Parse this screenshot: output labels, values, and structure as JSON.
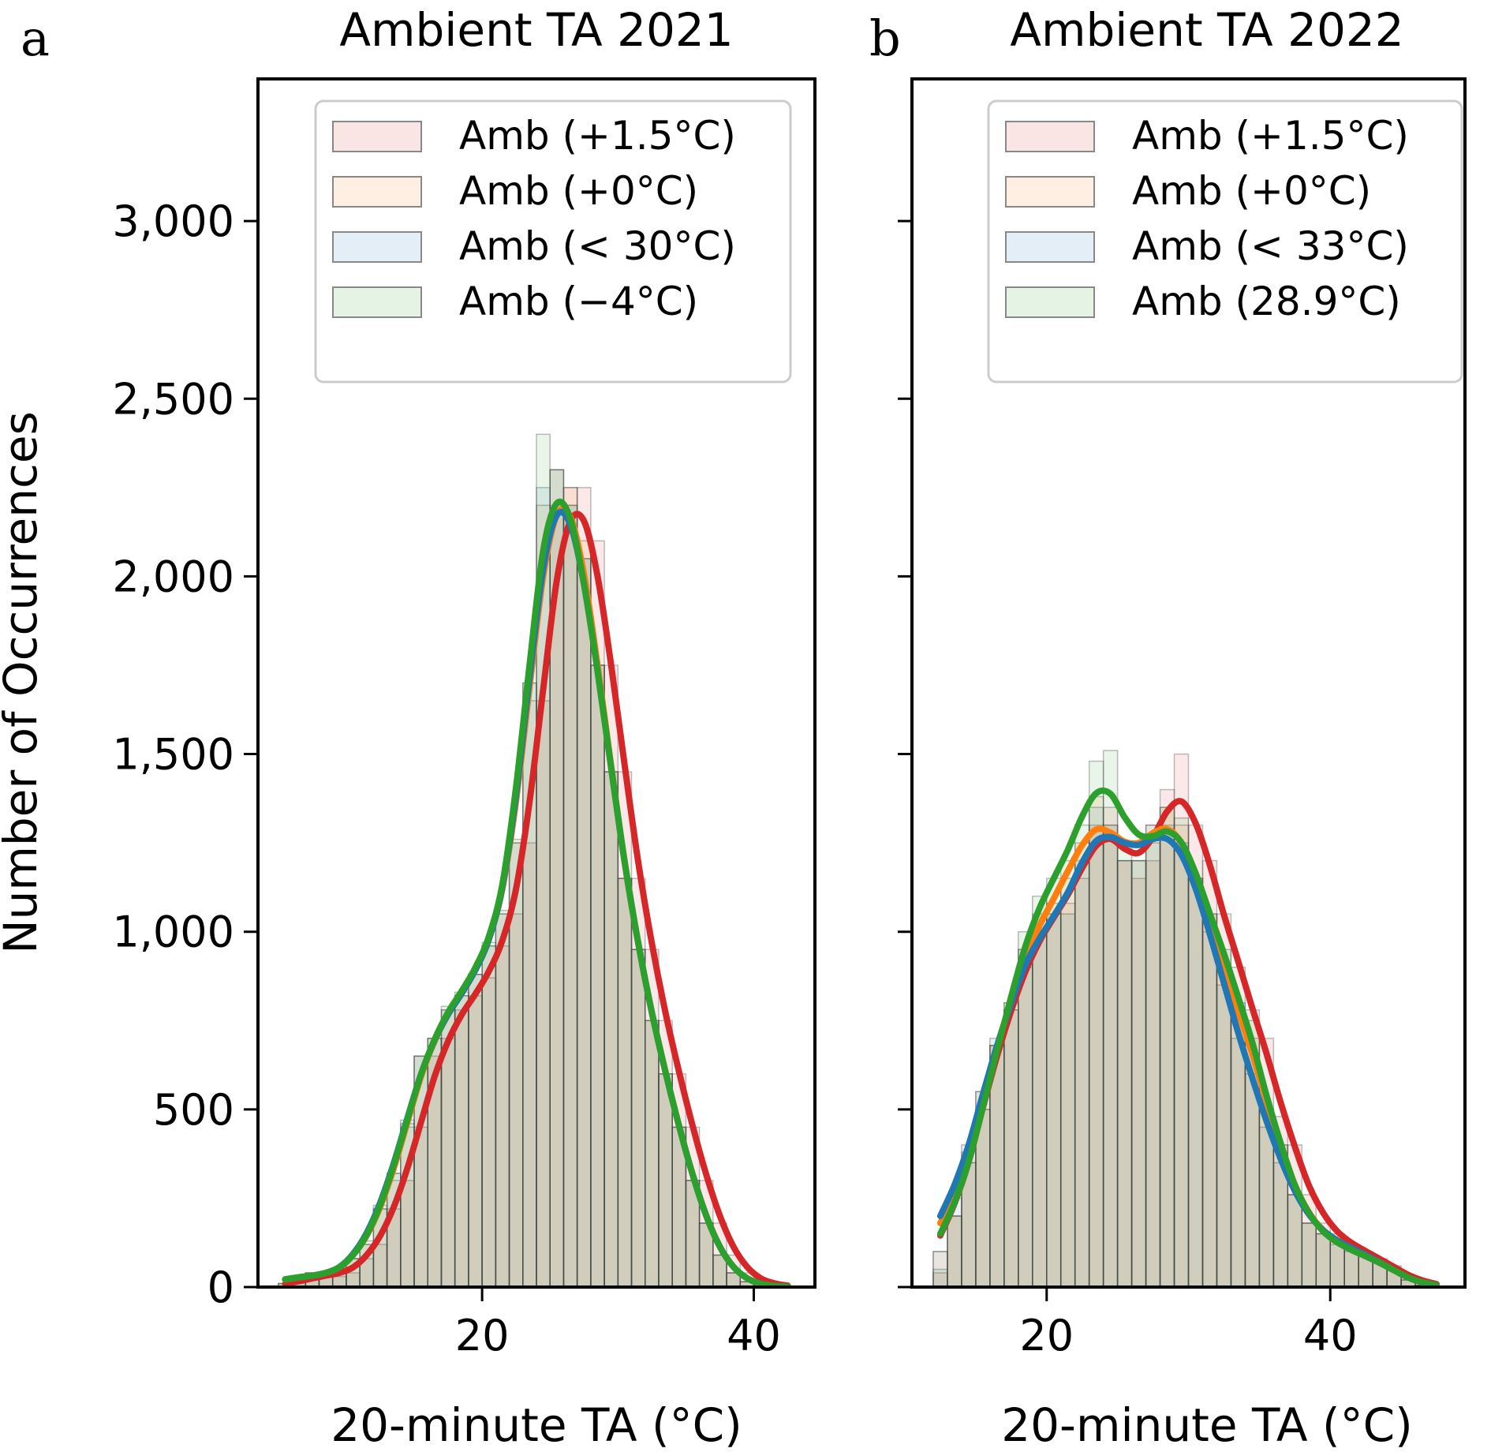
{
  "chart_data": [
    {
      "type": "bar",
      "panel_label": "a",
      "title": "Ambient TA 2021",
      "xlabel": "20-minute TA (°C)",
      "ylabel": "Number of Occurrences",
      "xlim": [
        3.5,
        44.5
      ],
      "ylim": [
        0,
        3400
      ],
      "xticks": [
        20,
        40
      ],
      "xtick_labels": [
        "20",
        "40"
      ],
      "yticks": [
        0,
        500,
        1000,
        1500,
        2000,
        2500,
        3000
      ],
      "ytick_labels": [
        "0",
        "500",
        "1,000",
        "1,500",
        "2,000",
        "2,500",
        "3,000"
      ],
      "legend_position": "top-right",
      "grid": false,
      "bin_width": 1,
      "bin_starts": [
        5,
        6,
        7,
        8,
        9,
        10,
        11,
        12,
        13,
        14,
        15,
        16,
        17,
        18,
        19,
        20,
        21,
        22,
        23,
        24,
        25,
        26,
        27,
        28,
        29,
        30,
        31,
        32,
        33,
        34,
        35,
        36,
        37,
        38,
        39,
        40,
        41,
        42
      ],
      "series": [
        {
          "name": "Amb (+1.5°C)",
          "color": "#d62728",
          "values": [
            0,
            10,
            30,
            40,
            30,
            40,
            80,
            120,
            220,
            300,
            450,
            650,
            700,
            780,
            820,
            870,
            960,
            1050,
            1250,
            1650,
            2200,
            2250,
            2250,
            2100,
            1750,
            1450,
            1150,
            950,
            750,
            600,
            450,
            300,
            180,
            90,
            40,
            15,
            5,
            0
          ]
        },
        {
          "name": "Amb (+0°C)",
          "color": "#ff7f0e",
          "values": [
            10,
            30,
            40,
            30,
            40,
            80,
            120,
            220,
            300,
            450,
            650,
            700,
            780,
            820,
            880,
            960,
            1050,
            1250,
            1650,
            2200,
            2300,
            2250,
            2100,
            1750,
            1450,
            1150,
            950,
            750,
            600,
            450,
            300,
            180,
            90,
            40,
            15,
            5,
            0,
            0
          ]
        },
        {
          "name": "Amb (< 30°C)",
          "color": "#1f77b4",
          "values": [
            10,
            30,
            40,
            30,
            40,
            80,
            130,
            230,
            320,
            470,
            650,
            700,
            780,
            820,
            880,
            960,
            1050,
            1250,
            1700,
            2250,
            2300,
            2200,
            2050,
            1750,
            1450,
            1150,
            950,
            750,
            600,
            450,
            300,
            180,
            90,
            40,
            15,
            5,
            0,
            0
          ]
        },
        {
          "name": "Amb (−4°C)",
          "color": "#2ca02c",
          "values": [
            10,
            30,
            40,
            30,
            40,
            80,
            120,
            220,
            320,
            460,
            650,
            700,
            790,
            830,
            880,
            970,
            1060,
            1260,
            1700,
            2400,
            2300,
            2200,
            2050,
            1750,
            1450,
            1150,
            950,
            750,
            600,
            450,
            300,
            180,
            90,
            40,
            15,
            5,
            0,
            0
          ]
        }
      ]
    },
    {
      "type": "bar",
      "panel_label": "b",
      "title": "Ambient TA 2022",
      "xlabel": "20-minute TA (°C)",
      "ylabel": "",
      "xlim": [
        10.5,
        49.5
      ],
      "ylim": [
        0,
        3400
      ],
      "xticks": [
        20,
        40
      ],
      "xtick_labels": [
        "20",
        "40"
      ],
      "yticks": [
        0,
        500,
        1000,
        1500,
        2000,
        2500,
        3000
      ],
      "ytick_labels": [
        "",
        "",
        "",
        "",
        "",
        "",
        ""
      ],
      "legend_position": "top-right",
      "grid": false,
      "bin_width": 1,
      "bin_starts": [
        12,
        13,
        14,
        15,
        16,
        17,
        18,
        19,
        20,
        21,
        22,
        23,
        24,
        25,
        26,
        27,
        28,
        29,
        30,
        31,
        32,
        33,
        34,
        35,
        36,
        37,
        38,
        39,
        40,
        41,
        42,
        43,
        44,
        45,
        46,
        47
      ],
      "series": [
        {
          "name": "Amb (+1.5°C)",
          "color": "#d62728",
          "values": [
            40,
            200,
            350,
            500,
            680,
            780,
            900,
            1000,
            1050,
            1080,
            1150,
            1300,
            1350,
            1200,
            1150,
            1200,
            1400,
            1500,
            1300,
            1200,
            1050,
            900,
            780,
            700,
            480,
            400,
            260,
            180,
            150,
            120,
            100,
            80,
            60,
            30,
            10,
            0
          ]
        },
        {
          "name": "Amb (+0°C)",
          "color": "#ff7f0e",
          "values": [
            100,
            200,
            380,
            550,
            680,
            800,
            950,
            1050,
            1080,
            1150,
            1250,
            1380,
            1300,
            1200,
            1200,
            1300,
            1350,
            1300,
            1150,
            1050,
            900,
            750,
            700,
            500,
            400,
            260,
            180,
            150,
            130,
            110,
            90,
            70,
            50,
            20,
            5,
            0
          ]
        },
        {
          "name": "Amb (< 33°C)",
          "color": "#1f77b4",
          "values": [
            100,
            250,
            400,
            550,
            700,
            780,
            950,
            1000,
            1050,
            1050,
            1200,
            1350,
            1300,
            1200,
            1200,
            1300,
            1300,
            1250,
            1150,
            1000,
            850,
            700,
            600,
            450,
            350,
            260,
            180,
            150,
            130,
            110,
            90,
            70,
            50,
            20,
            5,
            0
          ]
        },
        {
          "name": "Amb (28.9°C)",
          "color": "#2ca02c",
          "values": [
            50,
            200,
            350,
            500,
            680,
            800,
            1000,
            1100,
            1150,
            1200,
            1300,
            1480,
            1510,
            1250,
            1200,
            1250,
            1350,
            1320,
            1150,
            1050,
            950,
            800,
            750,
            500,
            400,
            260,
            180,
            150,
            120,
            100,
            90,
            70,
            50,
            20,
            5,
            0
          ]
        }
      ]
    }
  ]
}
